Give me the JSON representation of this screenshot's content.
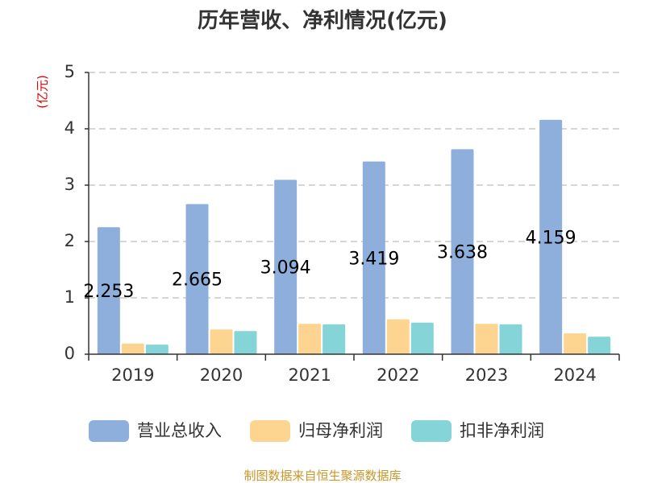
{
  "chart_data": {
    "type": "bar",
    "title": "历年营收、净利情况(亿元)",
    "unit_label": "(亿元)",
    "categories": [
      "2019",
      "2020",
      "2021",
      "2022",
      "2023",
      "2024"
    ],
    "ylim": [
      0,
      5
    ],
    "yticks": [
      "0",
      "1",
      "2",
      "3",
      "4",
      "5"
    ],
    "grid": true,
    "legend_position": "bottom",
    "series": [
      {
        "name": "营业总收入",
        "color": "#8eaedb",
        "values": [
          2.253,
          2.665,
          3.094,
          3.419,
          3.638,
          4.159
        ],
        "labels": [
          "2.253",
          "2.665",
          "3.094",
          "3.419",
          "3.638",
          "4.159"
        ]
      },
      {
        "name": "归母净利润",
        "color": "#fdd590",
        "values": [
          0.19,
          0.44,
          0.54,
          0.62,
          0.54,
          0.37
        ]
      },
      {
        "name": "扣非净利润",
        "color": "#85d5d8",
        "values": [
          0.17,
          0.41,
          0.53,
          0.56,
          0.53,
          0.31
        ]
      }
    ],
    "source": "制图数据来自恒生聚源数据库"
  }
}
